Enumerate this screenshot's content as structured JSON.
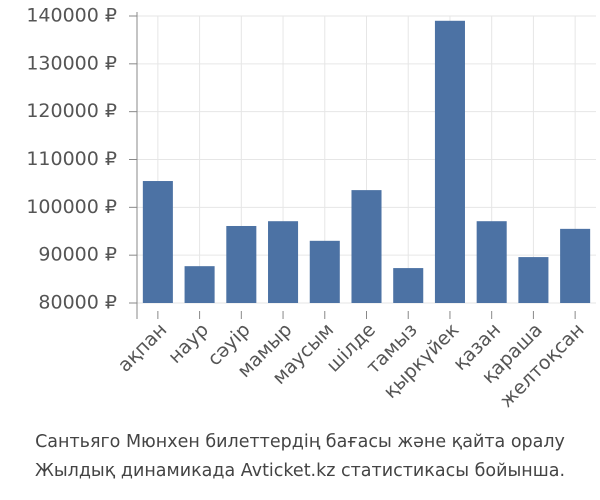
{
  "chart_data": {
    "type": "bar",
    "categories": [
      "ақпан",
      "наур",
      "сәуір",
      "мамыр",
      "маусым",
      "шілде",
      "тамыз",
      "қыркүйек",
      "қазан",
      "қараша",
      "желтоқсан"
    ],
    "values": [
      105500,
      87700,
      96100,
      97100,
      93000,
      103600,
      87300,
      139000,
      97100,
      89600,
      95500
    ],
    "color": "#4c72a4",
    "ylim": [
      80000,
      140000
    ],
    "yticks": [
      {
        "value": 80000,
        "label": "80000 ₽"
      },
      {
        "value": 90000,
        "label": "90000 ₽"
      },
      {
        "value": 100000,
        "label": "100000 ₽"
      },
      {
        "value": 110000,
        "label": "110000 ₽"
      },
      {
        "value": 120000,
        "label": "120000 ₽"
      },
      {
        "value": 130000,
        "label": "130000 ₽"
      },
      {
        "value": 140000,
        "label": "140000 ₽"
      }
    ],
    "grid": true,
    "caption": [
      "Сантьяго Мюнхен билеттердің бағасы және қайта оралу",
      "Жылдық динамикада Avticket.kz статистикасы бойынша."
    ]
  }
}
